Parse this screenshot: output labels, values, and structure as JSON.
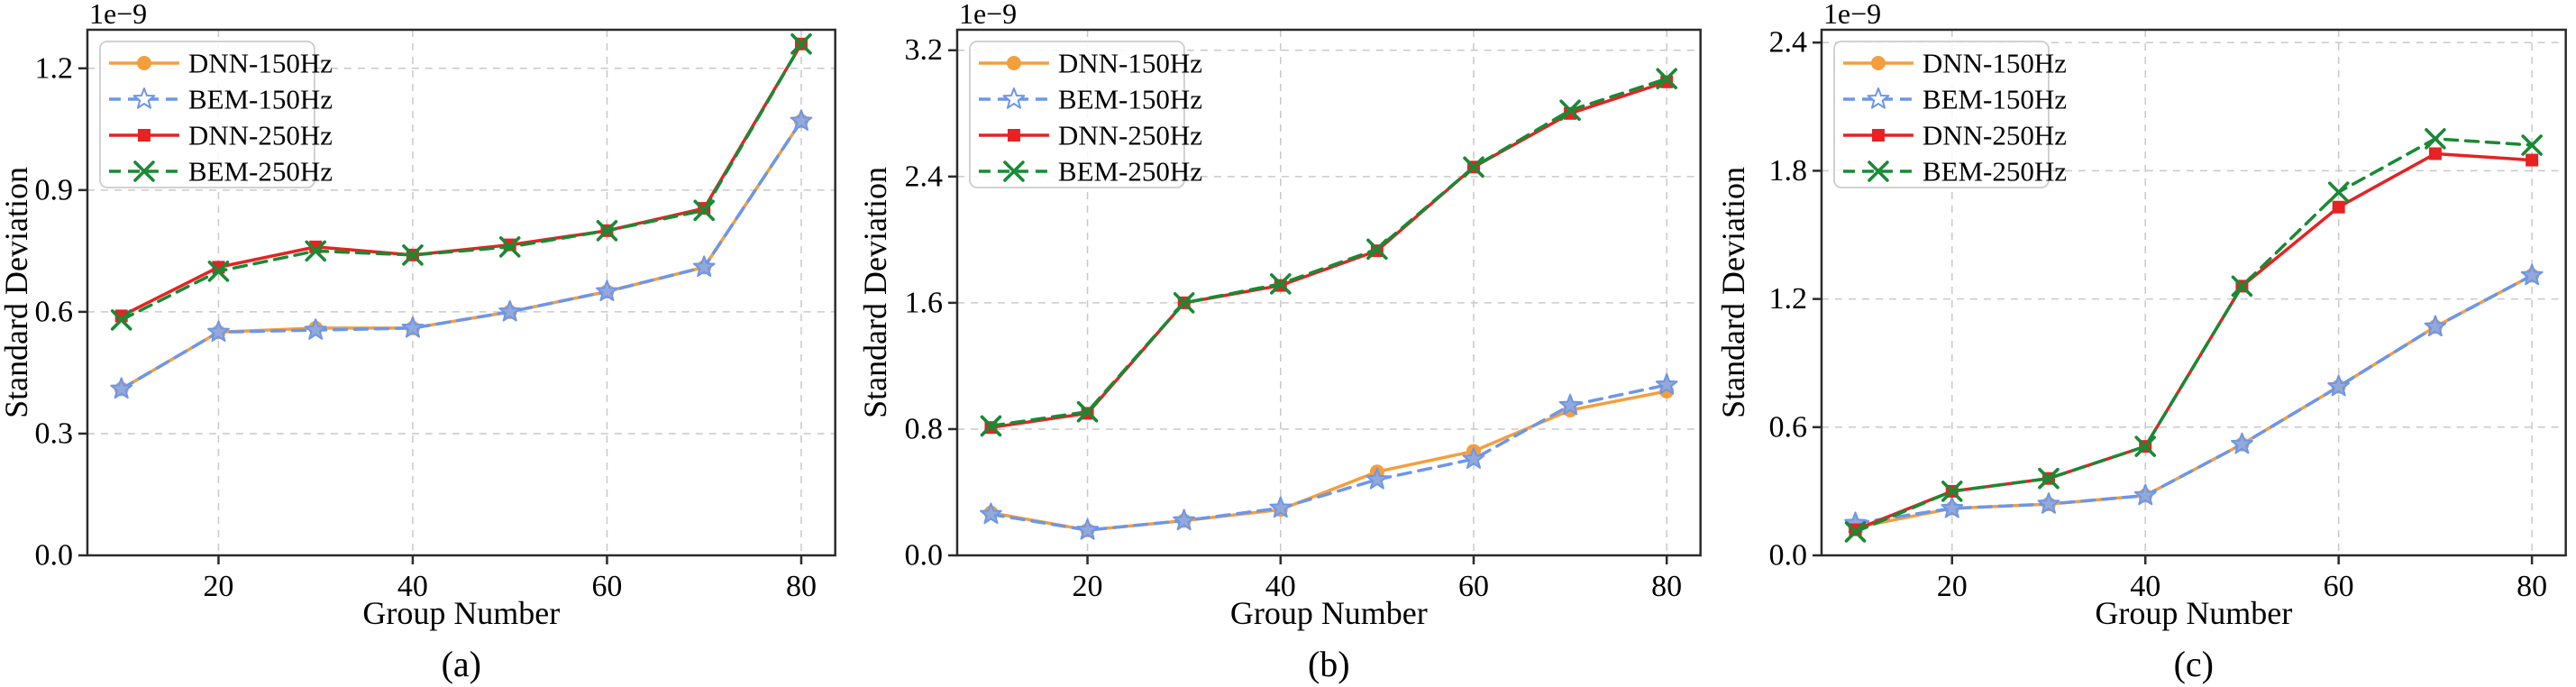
{
  "figure": {
    "background": "#ffffff",
    "panel_captions": [
      "(a)",
      "(b)",
      "(c)"
    ]
  },
  "style": {
    "spine_color": "#2b2b2b",
    "grid_color": "#c9c9c9",
    "tick_color": "#2b2b2b",
    "text_color": "#000000",
    "legend_bg": "#ffffff",
    "legend_border": "#cccccc",
    "colors": {
      "orange": "#f59e3c",
      "blue": "#6d96e8",
      "blue_star_fill": "#92a9da",
      "red": "#e62222",
      "green": "#188a34"
    }
  },
  "chart_data": [
    {
      "type": "line",
      "label": "(a)",
      "xlabel": "Group Number",
      "ylabel": "Standard Deviation",
      "offset_text": "1e−9",
      "x": [
        10,
        20,
        30,
        40,
        50,
        60,
        70,
        80
      ],
      "xticks": [
        20,
        40,
        60,
        80
      ],
      "yticks": [
        "0.0",
        "0.3",
        "0.6",
        "0.9",
        "1.2"
      ],
      "xlim": [
        6.5,
        83.5
      ],
      "ylim": [
        0,
        1.295
      ],
      "grid": true,
      "legend_position": "upper left",
      "legend": [
        "DNN-150Hz",
        "BEM-150Hz",
        "DNN-250Hz",
        "BEM-250Hz"
      ],
      "series": [
        {
          "name": "DNN-150Hz",
          "color": "#f59e3c",
          "line": "solid",
          "marker": "circle",
          "values": [
            0.41,
            0.55,
            0.56,
            0.56,
            0.6,
            0.65,
            0.71,
            1.07
          ]
        },
        {
          "name": "BEM-150Hz",
          "color": "#6d96e8",
          "line": "dashed",
          "marker": "star",
          "values": [
            0.41,
            0.55,
            0.555,
            0.56,
            0.6,
            0.65,
            0.71,
            1.07
          ]
        },
        {
          "name": "DNN-250Hz",
          "color": "#e62222",
          "line": "solid",
          "marker": "square",
          "values": [
            0.59,
            0.71,
            0.76,
            0.74,
            0.765,
            0.8,
            0.855,
            1.26
          ]
        },
        {
          "name": "BEM-250Hz",
          "color": "#188a34",
          "line": "dashed",
          "marker": "x",
          "values": [
            0.58,
            0.7,
            0.75,
            0.74,
            0.76,
            0.8,
            0.85,
            1.26
          ]
        }
      ]
    },
    {
      "type": "line",
      "label": "(b)",
      "xlabel": "Group Number",
      "ylabel": "Standard Deviation",
      "offset_text": "1e−9",
      "x": [
        10,
        20,
        30,
        40,
        50,
        60,
        70,
        80
      ],
      "xticks": [
        20,
        40,
        60,
        80
      ],
      "yticks": [
        "0.0",
        "0.8",
        "1.6",
        "2.4",
        "3.2"
      ],
      "xlim": [
        6.5,
        83.5
      ],
      "ylim": [
        0,
        3.33
      ],
      "grid": true,
      "legend_position": "upper left",
      "legend": [
        "DNN-150Hz",
        "BEM-150Hz",
        "DNN-250Hz",
        "BEM-250Hz"
      ],
      "series": [
        {
          "name": "DNN-150Hz",
          "color": "#f59e3c",
          "line": "solid",
          "marker": "circle",
          "values": [
            0.27,
            0.16,
            0.22,
            0.29,
            0.53,
            0.66,
            0.92,
            1.04
          ]
        },
        {
          "name": "BEM-150Hz",
          "color": "#6d96e8",
          "line": "dashed",
          "marker": "star",
          "values": [
            0.26,
            0.16,
            0.22,
            0.3,
            0.48,
            0.61,
            0.95,
            1.08
          ]
        },
        {
          "name": "DNN-250Hz",
          "color": "#e62222",
          "line": "solid",
          "marker": "square",
          "values": [
            0.81,
            0.9,
            1.6,
            1.71,
            1.93,
            2.46,
            2.8,
            3.0
          ]
        },
        {
          "name": "BEM-250Hz",
          "color": "#188a34",
          "line": "dashed",
          "marker": "x",
          "values": [
            0.82,
            0.91,
            1.6,
            1.72,
            1.94,
            2.46,
            2.82,
            3.02
          ]
        }
      ]
    },
    {
      "type": "line",
      "label": "(c)",
      "xlabel": "Group Number",
      "ylabel": "Standard Deviation",
      "offset_text": "1e−9",
      "x": [
        10,
        20,
        30,
        40,
        50,
        60,
        70,
        80
      ],
      "xticks": [
        20,
        40,
        60,
        80
      ],
      "yticks": [
        "0.0",
        "0.6",
        "1.2",
        "1.8",
        "2.4"
      ],
      "xlim": [
        6.5,
        83.5
      ],
      "ylim": [
        0,
        2.46
      ],
      "grid": true,
      "legend_position": "upper left",
      "legend": [
        "DNN-150Hz",
        "BEM-150Hz",
        "DNN-250Hz",
        "BEM-250Hz"
      ],
      "series": [
        {
          "name": "DNN-150Hz",
          "color": "#f59e3c",
          "line": "solid",
          "marker": "circle",
          "values": [
            0.13,
            0.22,
            0.24,
            0.28,
            0.52,
            0.79,
            1.07,
            1.31
          ]
        },
        {
          "name": "BEM-150Hz",
          "color": "#6d96e8",
          "line": "dashed",
          "marker": "star",
          "values": [
            0.15,
            0.22,
            0.24,
            0.28,
            0.52,
            0.79,
            1.07,
            1.31
          ]
        },
        {
          "name": "DNN-250Hz",
          "color": "#e62222",
          "line": "solid",
          "marker": "square",
          "values": [
            0.12,
            0.3,
            0.36,
            0.51,
            1.26,
            1.63,
            1.88,
            1.85
          ]
        },
        {
          "name": "BEM-250Hz",
          "color": "#188a34",
          "line": "dashed",
          "marker": "x",
          "values": [
            0.11,
            0.3,
            0.36,
            0.51,
            1.26,
            1.7,
            1.95,
            1.92
          ]
        }
      ]
    }
  ]
}
